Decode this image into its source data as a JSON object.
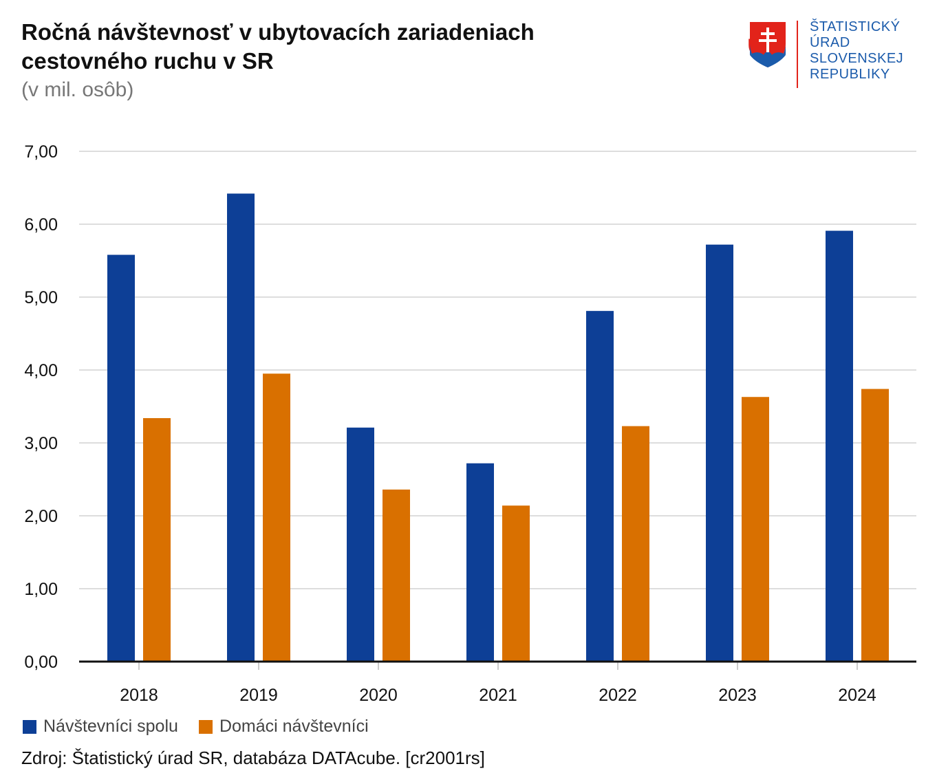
{
  "header": {
    "title_line1": "Ročná návštevnosť v ubytovacích zariadeniach",
    "title_line2": "cestovného ruchu v SR",
    "subtitle": "(v mil. osôb)"
  },
  "logo": {
    "line1": "ŠTATISTICKÝ",
    "line2": "ÚRAD",
    "line3": "SLOVENSKEJ",
    "line4": "REPUBLIKY"
  },
  "colors": {
    "series1": "#0d3f96",
    "series2": "#d97000",
    "grid": "#dddddd",
    "axis": "#111111"
  },
  "chart_data": {
    "type": "bar",
    "title": "Ročná návštevnosť v ubytovacích zariadeniach cestovného ruchu v SR",
    "subtitle": "(v mil. osôb)",
    "xlabel": "",
    "ylabel": "",
    "categories": [
      "2018",
      "2019",
      "2020",
      "2021",
      "2022",
      "2023",
      "2024"
    ],
    "series": [
      {
        "name": "Návštevníci spolu",
        "values": [
          5.58,
          6.42,
          3.21,
          2.72,
          4.81,
          5.72,
          5.91
        ]
      },
      {
        "name": "Domáci návštevníci",
        "values": [
          3.34,
          3.95,
          2.36,
          2.14,
          3.23,
          3.63,
          3.74
        ]
      }
    ],
    "ylim": [
      0,
      7
    ],
    "yticks": [
      "0,00",
      "1,00",
      "2,00",
      "3,00",
      "4,00",
      "5,00",
      "6,00",
      "7,00"
    ],
    "grid": true,
    "legend_position": "bottom-left"
  },
  "legend": {
    "item1": "Návštevníci spolu",
    "item2": "Domáci návštevníci"
  },
  "footer": {
    "source": "Zdroj: Štatistický úrad SR, databáza DATAcube. [cr2001rs]"
  }
}
